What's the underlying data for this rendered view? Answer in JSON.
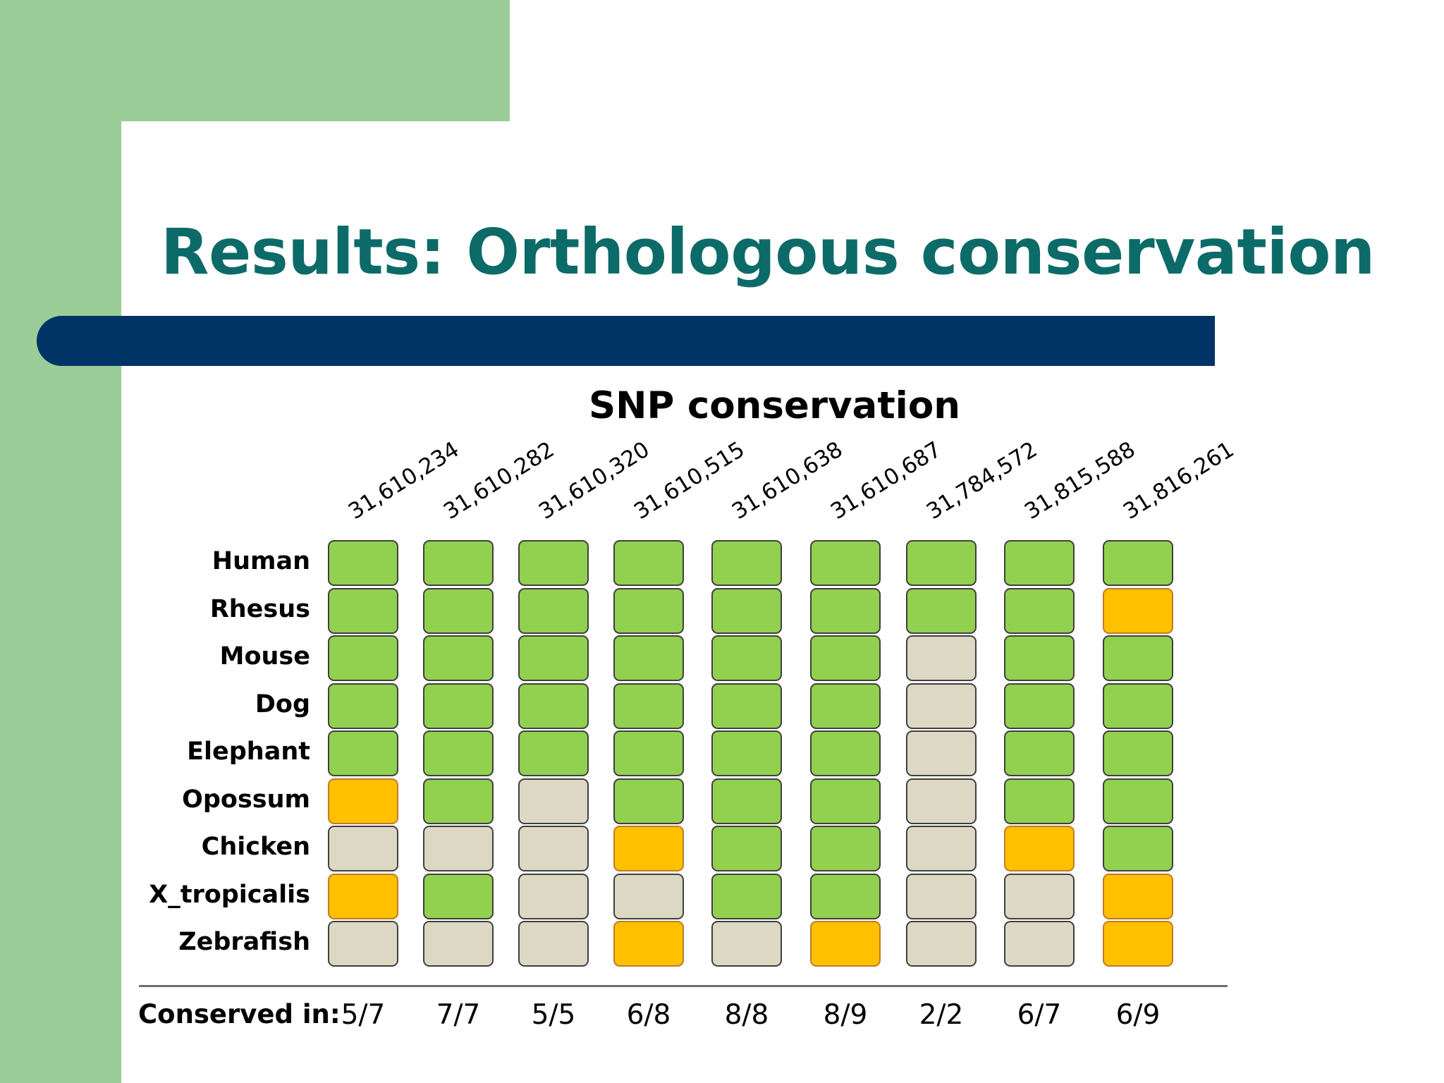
{
  "slide": {
    "title": "Results: Orthologous conservation"
  },
  "figure": {
    "title": "SNP conservation",
    "positions": [
      "31,610,234",
      "31,610,282",
      "31,610,320",
      "31,610,515",
      "31,610,638",
      "31,610,687",
      "31,784,572",
      "31,815,588",
      "31,816,261"
    ],
    "species": [
      "Human",
      "Rhesus",
      "Mouse",
      "Dog",
      "Elephant",
      "Opossum",
      "Chicken",
      "X_tropicalis",
      "Zebrafish"
    ],
    "legend_states": {
      "G": "conserved",
      "O": "changed",
      "N": "absent"
    },
    "colors": {
      "conserved": "#92d050",
      "changed": "#ffc000",
      "absent": "#ddd8c4"
    },
    "grid": [
      [
        "G",
        "G",
        "G",
        "G",
        "G",
        "G",
        "G",
        "G",
        "G"
      ],
      [
        "G",
        "G",
        "G",
        "G",
        "G",
        "G",
        "G",
        "G",
        "O"
      ],
      [
        "G",
        "G",
        "G",
        "G",
        "G",
        "G",
        "N",
        "G",
        "G"
      ],
      [
        "G",
        "G",
        "G",
        "G",
        "G",
        "G",
        "N",
        "G",
        "G"
      ],
      [
        "G",
        "G",
        "G",
        "G",
        "G",
        "G",
        "N",
        "G",
        "G"
      ],
      [
        "O",
        "G",
        "N",
        "G",
        "G",
        "G",
        "N",
        "G",
        "G"
      ],
      [
        "N",
        "N",
        "N",
        "O",
        "G",
        "G",
        "N",
        "O",
        "G"
      ],
      [
        "O",
        "G",
        "N",
        "N",
        "G",
        "G",
        "N",
        "N",
        "O"
      ],
      [
        "N",
        "N",
        "N",
        "O",
        "N",
        "O",
        "N",
        "N",
        "O"
      ]
    ],
    "footer_label": "Conserved in:",
    "conserved_in": [
      "5/7",
      "7/7",
      "5/5",
      "6/8",
      "8/8",
      "8/9",
      "2/2",
      "6/7",
      "6/9"
    ]
  }
}
